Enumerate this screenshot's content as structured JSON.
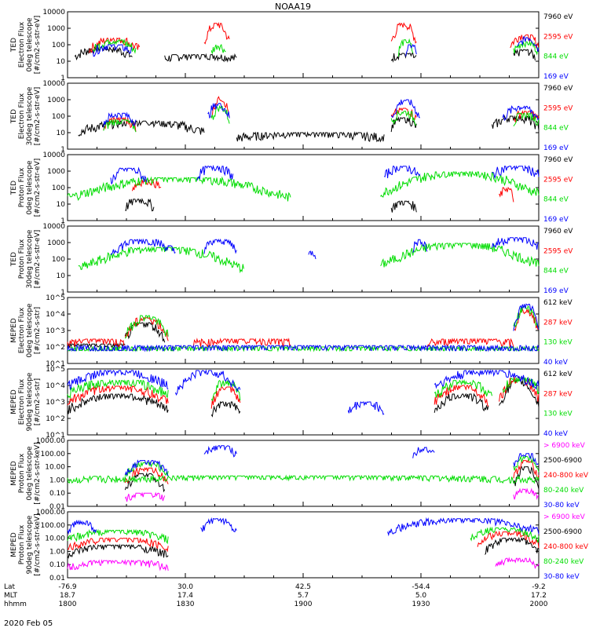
{
  "title": "NOAA19",
  "date": "2020 Feb 05",
  "colors": {
    "black": "#000000",
    "red": "#ff0000",
    "green": "#00dd00",
    "blue": "#0000ff",
    "magenta": "#ff00ff"
  },
  "bottom_axis": {
    "rows": [
      {
        "label": "Lat",
        "values": [
          "-76.9",
          "30.0",
          "42.5",
          "-54.4",
          "-9.2"
        ]
      },
      {
        "label": "MLT",
        "values": [
          "18.7",
          "17.4",
          "5.7",
          "5.0",
          "17.2"
        ]
      },
      {
        "label": "hhmm",
        "values": [
          "1800",
          "1830",
          "1900",
          "1930",
          "2000"
        ]
      }
    ]
  },
  "chart_data": [
    {
      "type": "line",
      "ylabel": [
        "TED",
        "Electron Flux",
        "0deg telescope",
        "[#/cm2-s-str-eV]"
      ],
      "ytick_labels": [
        "10000",
        "1000",
        "100",
        "10",
        "1"
      ],
      "yscale": "log",
      "ylim": [
        1,
        10000
      ],
      "series": [
        {
          "name": "7960 eV",
          "color": "black",
          "segments": [
            [
              2,
              18,
              10,
              70
            ],
            [
              27,
              47,
              10,
              25
            ],
            [
              90,
              97,
              10,
              30
            ],
            [
              124,
              130,
              10,
              50
            ]
          ]
        },
        {
          "name": "2595 eV",
          "color": "red",
          "segments": [
            [
              6,
              20,
              20,
              250
            ],
            [
              38,
              45,
              40,
              2000
            ],
            [
              90,
              97,
              40,
              2000
            ],
            [
              123,
              131,
              40,
              400
            ]
          ]
        },
        {
          "name": "844 eV",
          "color": "green",
          "segments": [
            [
              7,
              19,
              20,
              200
            ],
            [
              40,
              44,
              20,
              100
            ],
            [
              92,
              96,
              15,
              200
            ],
            [
              124,
              131,
              20,
              150
            ]
          ]
        },
        {
          "name": "169 eV",
          "color": "blue",
          "segments": [
            [
              7,
              18,
              20,
              100
            ],
            [
              94,
              97,
              20,
              100
            ],
            [
              125,
              131,
              20,
              300
            ]
          ]
        }
      ]
    },
    {
      "type": "line",
      "ylabel": [
        "TED",
        "Electron Flux",
        "30deg telescope",
        "[#/cm2-s-str-eV]"
      ],
      "ytick_labels": [
        "10000",
        "1000",
        "100",
        "10",
        "1"
      ],
      "yscale": "log",
      "ylim": [
        1,
        10000
      ],
      "series": [
        {
          "name": "7960 eV",
          "color": "black",
          "segments": [
            [
              3,
              38,
              5,
              50
            ],
            [
              47,
              88,
              3,
              10
            ],
            [
              90,
              97,
              10,
              80
            ],
            [
              118,
              131,
              10,
              100
            ]
          ]
        },
        {
          "name": "2595 eV",
          "color": "red",
          "segments": [
            [
              10,
              19,
              10,
              80
            ],
            [
              40,
              45,
              30,
              1500
            ],
            [
              90,
              97,
              30,
              300
            ],
            [
              124,
              131,
              30,
              200
            ]
          ]
        },
        {
          "name": "844 eV",
          "color": "green",
          "segments": [
            [
              10,
              19,
              10,
              60
            ],
            [
              40,
              45,
              20,
              400
            ],
            [
              90,
              97,
              20,
              200
            ],
            [
              124,
              131,
              20,
              150
            ]
          ]
        },
        {
          "name": "169 eV",
          "color": "blue",
          "segments": [
            [
              10,
              19,
              20,
              150
            ],
            [
              39,
              45,
              30,
              600
            ],
            [
              90,
              98,
              20,
              1000
            ],
            [
              121,
              131,
              30,
              400
            ]
          ]
        }
      ]
    },
    {
      "type": "line",
      "ylabel": [
        "TED",
        "Proton Flux",
        "0deg telescope",
        "[#/cm2-s-str-eV]"
      ],
      "ytick_labels": [
        "10000",
        "1000",
        "100",
        "10",
        "1"
      ],
      "yscale": "log",
      "ylim": [
        1,
        10000
      ],
      "series": [
        {
          "name": "7960 eV",
          "color": "black",
          "segments": [
            [
              16,
              24,
              3,
              20
            ],
            [
              90,
              97,
              3,
              15
            ]
          ]
        },
        {
          "name": "2595 eV",
          "color": "red",
          "segments": [
            [
              18,
              26,
              50,
              300
            ],
            [
              120,
              124,
              10,
              100
            ]
          ]
        },
        {
          "name": "844 eV",
          "color": "green",
          "segments": [
            [
              0,
              62,
              5,
              400
            ],
            [
              87,
              131,
              8,
              900
            ]
          ]
        },
        {
          "name": "169 eV",
          "color": "blue",
          "segments": [
            [
              12,
              22,
              100,
              1500
            ],
            [
              36,
              46,
              200,
              2000
            ],
            [
              88,
              98,
              200,
              2000
            ],
            [
              118,
              131,
              300,
              2000
            ]
          ]
        }
      ]
    },
    {
      "type": "line",
      "ylabel": [
        "TED",
        "Proton Flux",
        "30deg telescope",
        "[#/cm2-s-str-eV]"
      ],
      "ytick_labels": [
        "10000",
        "1000",
        "100",
        "10",
        "1"
      ],
      "yscale": "log",
      "ylim": [
        1,
        10000
      ],
      "series": [
        {
          "name": "7960 eV",
          "color": "black",
          "segments": []
        },
        {
          "name": "2595 eV",
          "color": "red",
          "segments": []
        },
        {
          "name": "844 eV",
          "color": "green",
          "segments": [
            [
              3,
              49,
              5,
              500
            ],
            [
              87,
              131,
              8,
              900
            ]
          ]
        },
        {
          "name": "169 eV",
          "color": "blue",
          "segments": [
            [
              12,
              30,
              100,
              1500
            ],
            [
              38,
              47,
              200,
              1500
            ],
            [
              67,
              69,
              100,
              300
            ],
            [
              96,
              100,
              200,
              1500
            ],
            [
              118,
              131,
              300,
              2000
            ]
          ]
        }
      ]
    },
    {
      "type": "line",
      "ylabel": [
        "MEPED",
        "Electron Flux",
        "0deg telescope",
        "[#/cm2-s-str]"
      ],
      "ytick_labels": [
        "10^5",
        "10^4",
        "10^3",
        "10^2",
        "10^1"
      ],
      "yscale": "log",
      "ylim": [
        10,
        100000
      ],
      "series": [
        {
          "name": "612 keV",
          "color": "black",
          "segments": [
            [
              0,
              16,
              100,
              150
            ],
            [
              16,
              27,
              100,
              3000
            ]
          ]
        },
        {
          "name": "287 keV",
          "color": "red",
          "segments": [
            [
              0,
              16,
              100,
              300
            ],
            [
              16,
              28,
              100,
              6000
            ],
            [
              35,
              62,
              100,
              300
            ],
            [
              100,
              124,
              100,
              300
            ],
            [
              124,
              131,
              150,
              20000
            ]
          ]
        },
        {
          "name": "130 keV",
          "color": "green",
          "segments": [
            [
              0,
              131,
              60,
              100
            ],
            [
              16,
              28,
              100,
              8000
            ],
            [
              124,
              131,
              200,
              30000
            ]
          ]
        },
        {
          "name": "40 keV",
          "color": "blue",
          "segments": [
            [
              0,
              131,
              60,
              120
            ],
            [
              124,
              131,
              300,
              40000
            ]
          ]
        }
      ]
    },
    {
      "type": "line",
      "ylabel": [
        "MEPED",
        "Electron Flux",
        "90deg telescope",
        "[#/cm2-s-str]"
      ],
      "ytick_labels": [
        "10^5",
        "10^4",
        "10^3",
        "10^2",
        "10^1"
      ],
      "yscale": "log",
      "ylim": [
        10,
        100000
      ],
      "series": [
        {
          "name": "612 keV",
          "color": "black",
          "segments": [
            [
              0,
              28,
              100,
              3000
            ],
            [
              40,
              48,
              80,
              1000
            ],
            [
              102,
              117,
              100,
              3000
            ],
            [
              120,
              131,
              100,
              20000
            ]
          ]
        },
        {
          "name": "287 keV",
          "color": "red",
          "segments": [
            [
              0,
              28,
              300,
              9000
            ],
            [
              40,
              48,
              200,
              8000
            ],
            [
              102,
              117,
              300,
              10000
            ],
            [
              120,
              131,
              300,
              30000
            ]
          ]
        },
        {
          "name": "130 keV",
          "color": "green",
          "segments": [
            [
              0,
              28,
              1000,
              20000
            ],
            [
              40,
              48,
              500,
              20000
            ],
            [
              102,
              118,
              600,
              20000
            ],
            [
              121,
              131,
              2000,
              30000
            ]
          ]
        },
        {
          "name": "40 keV",
          "color": "blue",
          "segments": [
            [
              0,
              28,
              3000,
              80000
            ],
            [
              30,
              48,
              1000,
              80000
            ],
            [
              78,
              88,
              100,
              1000
            ],
            [
              102,
              131,
              3000,
              80000
            ]
          ]
        }
      ]
    },
    {
      "type": "line",
      "ylabel": [
        "MEPED",
        "Proton Flux",
        "0deg telescope",
        "[#/cm2-s-str-keV]"
      ],
      "ytick_labels": [
        "1000.00",
        "100.00",
        "10.00",
        "1.00",
        "0.10",
        "0.01"
      ],
      "yscale": "log",
      "ylim": [
        0.01,
        1000
      ],
      "series": [
        {
          "name": "> 6900 keV",
          "color": "magenta",
          "segments": [
            [
              16,
              27,
              0.02,
              0.1
            ],
            [
              124,
              131,
              0.02,
              0.2
            ]
          ]
        },
        {
          "name": "2500-6900",
          "color": "black",
          "segments": [
            [
              16,
              27,
              0.05,
              3
            ],
            [
              124,
              131,
              0.05,
              10
            ]
          ]
        },
        {
          "name": "240-800 keV",
          "color": "red",
          "segments": [
            [
              16,
              28,
              0.2,
              8
            ],
            [
              124,
              131,
              0.3,
              30
            ]
          ]
        },
        {
          "name": "80-240 keV",
          "color": "green",
          "segments": [
            [
              16,
              28,
              0.8,
              20
            ],
            [
              0,
              131,
              0.6,
              2
            ],
            [
              124,
              131,
              2,
              60
            ]
          ]
        },
        {
          "name": "30-80 keV",
          "color": "blue",
          "segments": [
            [
              16,
              28,
              1,
              30
            ],
            [
              38,
              47,
              30,
              400
            ],
            [
              96,
              102,
              30,
              300
            ],
            [
              124,
              131,
              5,
              100
            ]
          ]
        }
      ]
    },
    {
      "type": "line",
      "ylabel": [
        "MEPED",
        "Proton Flux",
        "90deg telescope",
        "[#/cm2-s-str-keV]"
      ],
      "ytick_labels": [
        "1000.00",
        "100.00",
        "10.00",
        "1.00",
        "0.10",
        "0.01"
      ],
      "yscale": "log",
      "ylim": [
        0.01,
        1000
      ],
      "series": [
        {
          "name": "> 6900 keV",
          "color": "magenta",
          "segments": [
            [
              0,
              28,
              0.03,
              0.2
            ],
            [
              119,
              131,
              0.03,
              0.3
            ]
          ]
        },
        {
          "name": "2500-6900",
          "color": "black",
          "segments": [
            [
              0,
              28,
              0.2,
              3
            ],
            [
              116,
              131,
              0.3,
              10
            ]
          ]
        },
        {
          "name": "240-800 keV",
          "color": "red",
          "segments": [
            [
              0,
              28,
              0.8,
              10
            ],
            [
              114,
              131,
              1,
              30
            ]
          ]
        },
        {
          "name": "80-240 keV",
          "color": "green",
          "segments": [
            [
              0,
              28,
              3,
              40
            ],
            [
              112,
              131,
              3,
              60
            ]
          ]
        },
        {
          "name": "30-80 keV",
          "color": "blue",
          "segments": [
            [
              0,
              8,
              10,
              200
            ],
            [
              37,
              47,
              10,
              300
            ],
            [
              89,
              131,
              10,
              300
            ]
          ]
        }
      ]
    }
  ]
}
